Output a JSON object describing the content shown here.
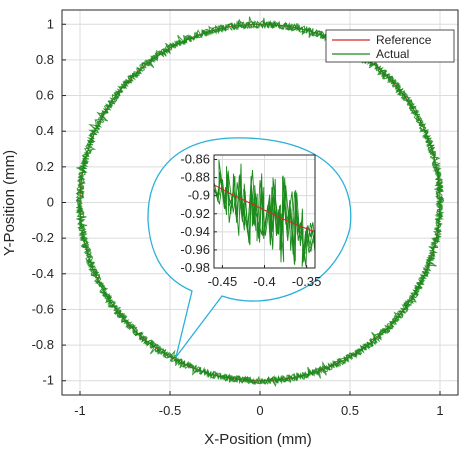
{
  "chart_data": [
    {
      "type": "line",
      "title": "",
      "xlabel": "X-Position (mm)",
      "ylabel": "Y-Position (mm)",
      "xlim": [
        -1.1,
        1.1
      ],
      "ylim": [
        -1.08,
        1.08
      ],
      "x_ticks": [
        -1,
        -0.5,
        0,
        0.5,
        1
      ],
      "x_tick_labels": [
        "-1",
        "-0.5",
        "0",
        "0.5",
        "1"
      ],
      "y_ticks": [
        1,
        0.8,
        0.6,
        0.4,
        0.2,
        0,
        -0.2,
        -0.4,
        -0.6,
        -0.8,
        -1
      ],
      "y_tick_labels": [
        "1",
        "0.8",
        "0.6",
        "0.4",
        "0.2",
        "0",
        "-0.2",
        "-0.4",
        "-0.6",
        "-0.8",
        "-1"
      ],
      "grid": true,
      "legend_position": "top-right",
      "series": [
        {
          "name": "Reference",
          "color": "#d62728",
          "shape": "circle",
          "center": [
            0,
            0
          ],
          "radius": 1.0
        },
        {
          "name": "Actual",
          "color": "#1b8a1b",
          "shape": "circle",
          "center": [
            0,
            0
          ],
          "radius": 1.0,
          "noise_amplitude": 0.02
        }
      ]
    },
    {
      "type": "line",
      "title": "",
      "xlim": [
        -0.46,
        -0.34
      ],
      "ylim": [
        -0.98,
        -0.855
      ],
      "x_ticks": [
        -0.45,
        -0.4,
        -0.35
      ],
      "x_tick_labels": [
        "-0.45",
        "-0.4",
        "-0.35"
      ],
      "y_ticks": [
        -0.86,
        -0.88,
        -0.9,
        -0.92,
        -0.94,
        -0.96,
        -0.98
      ],
      "y_tick_labels": [
        "-0.86",
        "-0.88",
        "-0.9",
        "-0.92",
        "-0.94",
        "-0.96",
        "-0.98"
      ],
      "grid": true,
      "series": [
        {
          "name": "Reference",
          "color": "#d62728",
          "x": [
            -0.46,
            -0.44,
            -0.42,
            -0.4,
            -0.38,
            -0.36,
            -0.34
          ],
          "y": [
            -0.888,
            -0.898,
            -0.907,
            -0.916,
            -0.925,
            -0.933,
            -0.94
          ]
        },
        {
          "name": "Actual",
          "color": "#1b8a1b",
          "x": [
            -0.46,
            -0.455,
            -0.452,
            -0.447,
            -0.444,
            -0.44,
            -0.437,
            -0.433,
            -0.43,
            -0.426,
            -0.423,
            -0.42,
            -0.416,
            -0.413,
            -0.41,
            -0.406,
            -0.403,
            -0.4,
            -0.396,
            -0.393,
            -0.39,
            -0.386,
            -0.383,
            -0.38,
            -0.376,
            -0.373,
            -0.37,
            -0.366,
            -0.363,
            -0.36,
            -0.356,
            -0.353,
            -0.35,
            -0.346,
            -0.343,
            -0.34
          ],
          "y": [
            -0.885,
            -0.905,
            -0.875,
            -0.915,
            -0.882,
            -0.92,
            -0.89,
            -0.93,
            -0.878,
            -0.925,
            -0.895,
            -0.94,
            -0.885,
            -0.932,
            -0.902,
            -0.948,
            -0.89,
            -0.935,
            -0.91,
            -0.955,
            -0.893,
            -0.94,
            -0.915,
            -0.96,
            -0.88,
            -0.945,
            -0.905,
            -0.965,
            -0.9,
            -0.95,
            -0.928,
            -0.97,
            -0.935,
            -0.955,
            -0.938,
            -0.962
          ]
        }
      ]
    }
  ]
}
